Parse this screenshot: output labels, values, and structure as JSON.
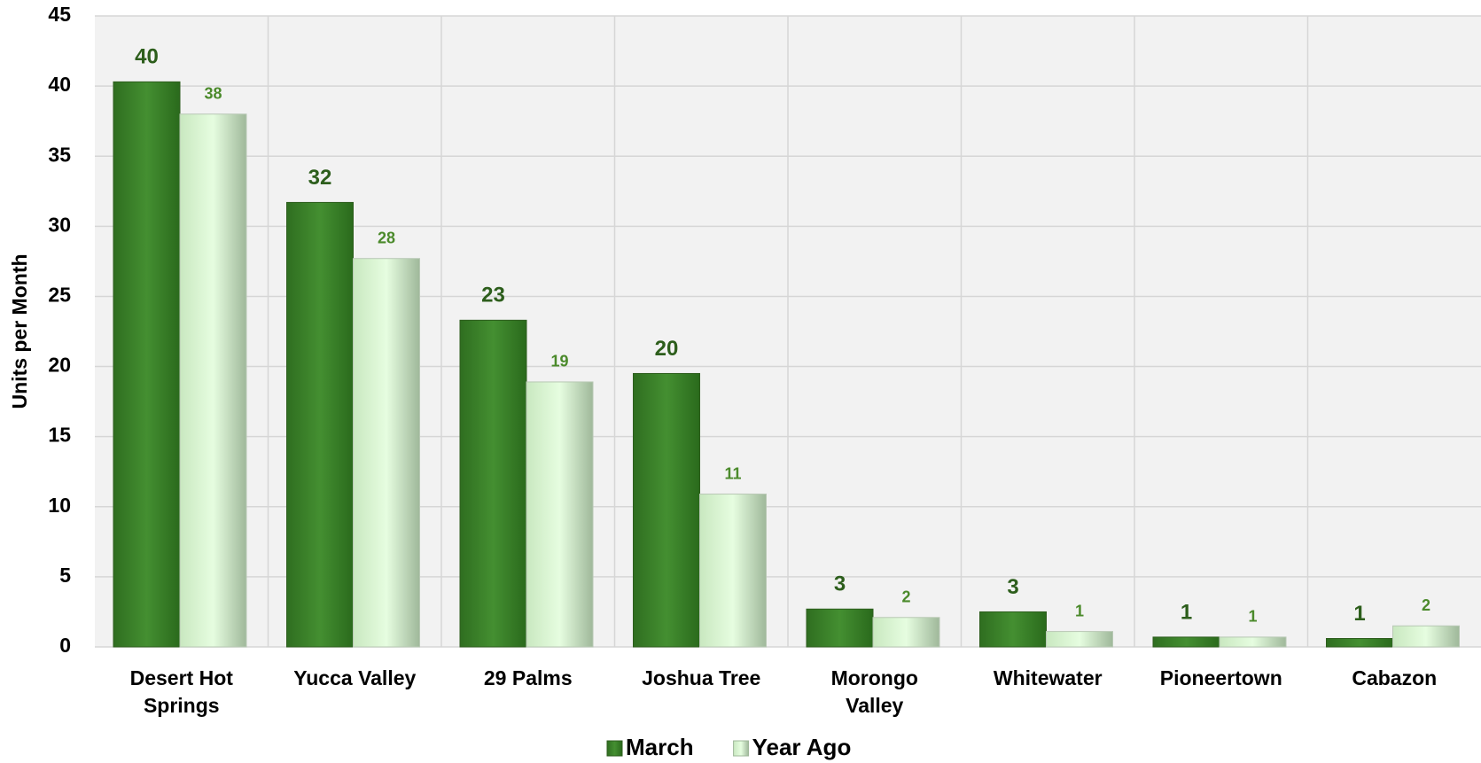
{
  "chart_data": {
    "type": "bar",
    "y_axis_label": "Units per Month",
    "categories": [
      "Desert Hot Springs",
      "Yucca Valley",
      "29 Palms",
      "Joshua Tree",
      "Morongo Valley",
      "Whitewater",
      "Pioneertown",
      "Cabazon"
    ],
    "series": [
      {
        "name": "March",
        "color": "#3d8a2c",
        "values": [
          40.3,
          31.7,
          23.3,
          19.5,
          2.7,
          2.5,
          0.7,
          0.6
        ],
        "value_labels": [
          "40",
          "32",
          "23",
          "20",
          "3",
          "3",
          "1",
          "1"
        ]
      },
      {
        "name": "Year Ago",
        "color": "#e0fbd8",
        "values": [
          38,
          27.7,
          18.9,
          10.9,
          2.1,
          1.1,
          0.7,
          1.5
        ],
        "value_labels": [
          "38",
          "28",
          "19",
          "11",
          "2",
          "1",
          "1",
          "2"
        ]
      }
    ],
    "ylim": [
      0,
      45
    ],
    "yticks": [
      0,
      5,
      10,
      15,
      20,
      25,
      30,
      35,
      40,
      45
    ],
    "grid": true,
    "legend": "bottom"
  }
}
